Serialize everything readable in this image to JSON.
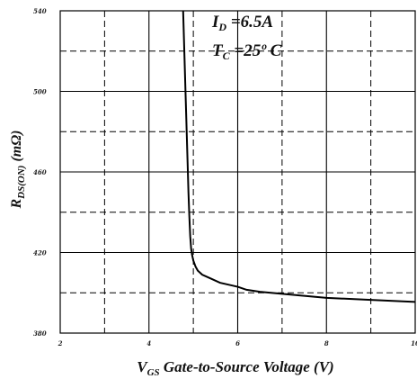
{
  "chart_data": {
    "type": "line",
    "xlabel": {
      "symbol": "V",
      "sub": "GS",
      "text": " Gate-to-Source Voltage (V)"
    },
    "ylabel": {
      "symbol": "R",
      "sub": "DS(ON)",
      "text": " (mΩ)"
    },
    "xlim": [
      2,
      10
    ],
    "ylim": [
      380,
      540
    ],
    "x_ticks": [
      "2",
      "4",
      "6",
      "8",
      "10"
    ],
    "y_ticks": [
      "380",
      "420",
      "460",
      "500",
      "540"
    ],
    "grid": true,
    "annotations": [
      {
        "symbol": "I",
        "sub": "D",
        "text": " =6.5A"
      },
      {
        "symbol": "T",
        "sub": "C",
        "text": " =25º C"
      }
    ],
    "series": [
      {
        "x": [
          4.77,
          4.79,
          4.81,
          4.83,
          4.85,
          4.87,
          4.89,
          4.91,
          4.93,
          4.95,
          4.97,
          5.0,
          5.05,
          5.1,
          5.2,
          5.4,
          5.6,
          5.8,
          6.0,
          6.2,
          6.5,
          7.0,
          7.5,
          8.0,
          9.0,
          10.0
        ],
        "y": [
          540,
          525,
          510,
          495,
          480,
          465,
          450,
          438,
          428,
          422,
          419,
          416,
          413,
          411,
          409,
          407,
          405,
          404,
          403,
          401.5,
          400.5,
          399.5,
          398.5,
          397.5,
          396.5,
          395.5
        ]
      }
    ]
  }
}
